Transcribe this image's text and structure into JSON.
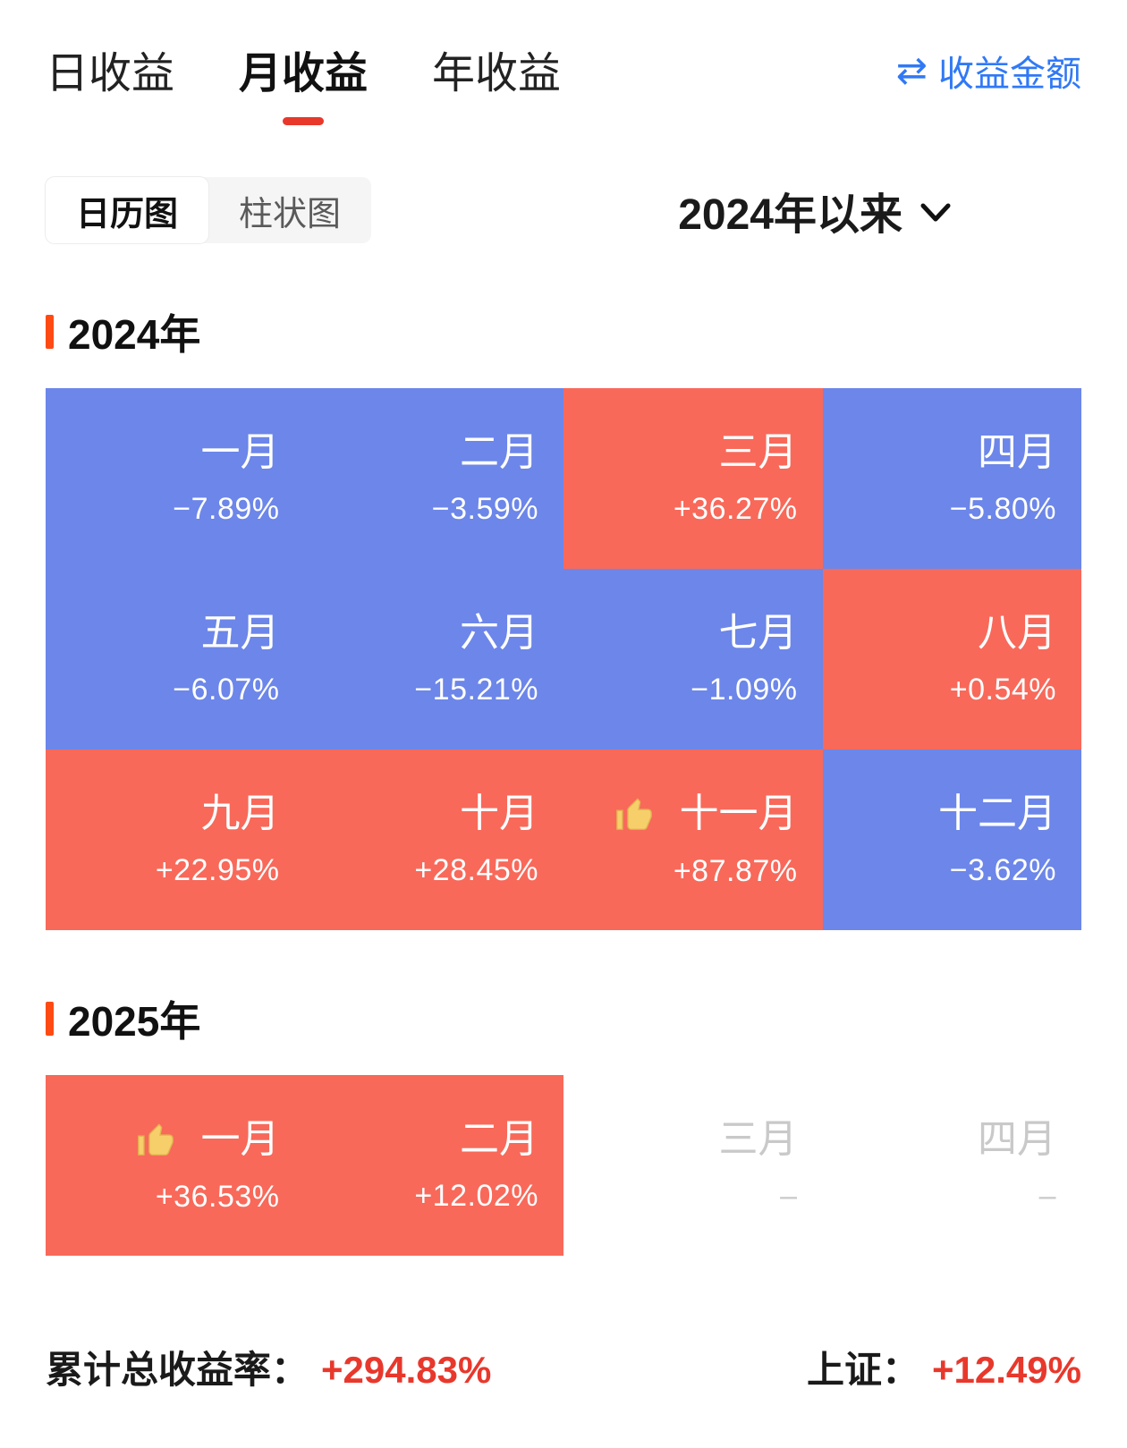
{
  "tabs": [
    {
      "label": "日收益",
      "active": false
    },
    {
      "label": "月收益",
      "active": true
    },
    {
      "label": "年收益",
      "active": false
    }
  ],
  "amount_link": {
    "label": "收益金额",
    "icon": "swap-arrows"
  },
  "view_toggle": {
    "options": [
      {
        "label": "日历图",
        "active": true
      },
      {
        "label": "柱状图",
        "active": false
      }
    ]
  },
  "period_selector": {
    "label": "2024年以来"
  },
  "sections": [
    {
      "year": "2024年",
      "months": [
        {
          "name": "一月",
          "value": "−7.89%",
          "type": "negative",
          "thumb": false
        },
        {
          "name": "二月",
          "value": "−3.59%",
          "type": "negative",
          "thumb": false
        },
        {
          "name": "三月",
          "value": "+36.27%",
          "type": "positive",
          "thumb": false
        },
        {
          "name": "四月",
          "value": "−5.80%",
          "type": "negative",
          "thumb": false
        },
        {
          "name": "五月",
          "value": "−6.07%",
          "type": "negative",
          "thumb": false
        },
        {
          "name": "六月",
          "value": "−15.21%",
          "type": "negative",
          "thumb": false
        },
        {
          "name": "七月",
          "value": "−1.09%",
          "type": "negative",
          "thumb": false
        },
        {
          "name": "八月",
          "value": "+0.54%",
          "type": "positive",
          "thumb": false
        },
        {
          "name": "九月",
          "value": "+22.95%",
          "type": "positive",
          "thumb": false
        },
        {
          "name": "十月",
          "value": "+28.45%",
          "type": "positive",
          "thumb": false
        },
        {
          "name": "十一月",
          "value": "+87.87%",
          "type": "positive",
          "thumb": true
        },
        {
          "name": "十二月",
          "value": "−3.62%",
          "type": "negative",
          "thumb": false
        }
      ]
    },
    {
      "year": "2025年",
      "months": [
        {
          "name": "一月",
          "value": "+36.53%",
          "type": "positive",
          "thumb": true
        },
        {
          "name": "二月",
          "value": "+12.02%",
          "type": "positive",
          "thumb": false
        },
        {
          "name": "三月",
          "value": "–",
          "type": "empty",
          "thumb": false
        },
        {
          "name": "四月",
          "value": "–",
          "type": "empty",
          "thumb": false
        }
      ]
    }
  ],
  "footer": {
    "total_label": "累计总收益率：",
    "total_value": "+294.83%",
    "benchmark_label": "上证：",
    "benchmark_value": "+12.49%"
  },
  "colors": {
    "positive_bg": "#f8695a",
    "negative_bg": "#6c86e9",
    "empty_text": "#c9c9c9",
    "accent_red": "#e8382c",
    "section_marker": "#ff4a14",
    "link_blue": "#3079f6"
  },
  "chart_data": {
    "type": "heatmap",
    "title": "月收益 日历图 2024年以来",
    "groups": [
      {
        "year": "2024",
        "categories": [
          "一月",
          "二月",
          "三月",
          "四月",
          "五月",
          "六月",
          "七月",
          "八月",
          "九月",
          "十月",
          "十一月",
          "十二月"
        ],
        "values_pct": [
          -7.89,
          -3.59,
          36.27,
          -5.8,
          -6.07,
          -15.21,
          -1.09,
          0.54,
          22.95,
          28.45,
          87.87,
          -3.62
        ]
      },
      {
        "year": "2025",
        "categories": [
          "一月",
          "二月",
          "三月",
          "四月"
        ],
        "values_pct": [
          36.53,
          12.02,
          null,
          null
        ]
      }
    ],
    "color_coding": "positive = red (#f8695a), negative = blue (#6c86e9), no-data = white",
    "cumulative_total_pct": 294.83,
    "benchmark": {
      "name": "上证",
      "value_pct": 12.49
    }
  }
}
